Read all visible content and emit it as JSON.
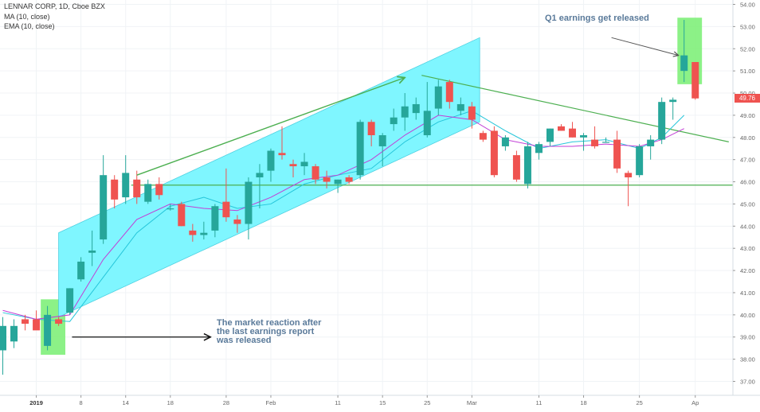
{
  "header": {
    "title": "LENNAR CORP, 1D, Cboe BZX",
    "indicators": [
      "MA (10, close)",
      "EMA (10, close)"
    ]
  },
  "last_price_label": "49.76",
  "colors": {
    "up": "#26a69a",
    "down": "#ef5350",
    "channel_fill": "#7ff6ff",
    "channel_edge": "#4dd0e1",
    "trend_line": "#4caf50",
    "highlight_box": "#7ff07a",
    "ma": "#26c6da",
    "ema": "#c23ed6",
    "annotation_text": "#5a7a9a",
    "axis_text": "#666666"
  },
  "annotations": [
    {
      "text_lines": [
        "The market reaction after",
        "the last earnings report",
        "was released"
      ]
    },
    {
      "text_lines": [
        "Q1 earnings get released"
      ]
    }
  ],
  "chart_data": {
    "type": "candlestick",
    "title": "LENNAR CORP, 1D, Cboe BZX",
    "xlabel": "",
    "ylabel": "",
    "ylim": [
      36.5,
      54
    ],
    "y_ticks": [
      "37.00",
      "38.00",
      "39.00",
      "40.00",
      "41.00",
      "42.00",
      "43.00",
      "44.00",
      "45.00",
      "46.00",
      "47.00",
      "48.00",
      "49.00",
      "50.00",
      "51.00",
      "52.00",
      "53.00",
      "54.00"
    ],
    "x_ticks": [
      {
        "label": "2019",
        "bar": 3,
        "bold": true
      },
      {
        "label": "8",
        "bar": 7
      },
      {
        "label": "14",
        "bar": 11
      },
      {
        "label": "18",
        "bar": 15
      },
      {
        "label": "28",
        "bar": 20
      },
      {
        "label": "Feb",
        "bar": 24
      },
      {
        "label": "11",
        "bar": 30
      },
      {
        "label": "15",
        "bar": 34
      },
      {
        "label": "25",
        "bar": 38
      },
      {
        "label": "Mar",
        "bar": 42
      },
      {
        "label": "11",
        "bar": 48
      },
      {
        "label": "18",
        "bar": 52
      },
      {
        "label": "25",
        "bar": 57
      },
      {
        "label": "Ap",
        "bar": 62
      }
    ],
    "candles": [
      {
        "o": 38.4,
        "h": 39.9,
        "l": 37.3,
        "c": 39.5
      },
      {
        "o": 38.8,
        "h": 39.8,
        "l": 38.5,
        "c": 39.5
      },
      {
        "o": 39.8,
        "h": 40.0,
        "l": 39.3,
        "c": 39.6
      },
      {
        "o": 39.8,
        "h": 40.2,
        "l": 39.4,
        "c": 39.3
      },
      {
        "o": 38.6,
        "h": 40.4,
        "l": 38.4,
        "c": 40.0
      },
      {
        "o": 39.8,
        "h": 39.9,
        "l": 39.5,
        "c": 39.6
      },
      {
        "o": 40.1,
        "h": 41.2,
        "l": 40.0,
        "c": 41.2
      },
      {
        "o": 41.6,
        "h": 42.6,
        "l": 41.5,
        "c": 42.4
      },
      {
        "o": 42.8,
        "h": 43.8,
        "l": 42.2,
        "c": 42.9
      },
      {
        "o": 43.4,
        "h": 47.2,
        "l": 43.2,
        "c": 46.3
      },
      {
        "o": 46.1,
        "h": 46.3,
        "l": 44.8,
        "c": 45.2
      },
      {
        "o": 45.3,
        "h": 47.2,
        "l": 45.0,
        "c": 46.4
      },
      {
        "o": 46.1,
        "h": 46.5,
        "l": 45.0,
        "c": 45.3
      },
      {
        "o": 45.1,
        "h": 46.1,
        "l": 45.0,
        "c": 45.9
      },
      {
        "o": 45.9,
        "h": 46.2,
        "l": 45.2,
        "c": 45.4
      },
      {
        "o": 44.8,
        "h": 45.0,
        "l": 44.7,
        "c": 44.8
      },
      {
        "o": 45.0,
        "h": 45.1,
        "l": 44.0,
        "c": 44.0
      },
      {
        "o": 43.8,
        "h": 44.1,
        "l": 43.3,
        "c": 43.6
      },
      {
        "o": 43.6,
        "h": 44.2,
        "l": 43.4,
        "c": 43.7
      },
      {
        "o": 43.8,
        "h": 45.0,
        "l": 43.5,
        "c": 44.9
      },
      {
        "o": 45.1,
        "h": 46.6,
        "l": 44.2,
        "c": 44.4
      },
      {
        "o": 44.3,
        "h": 44.5,
        "l": 43.7,
        "c": 44.1
      },
      {
        "o": 44.1,
        "h": 46.2,
        "l": 43.4,
        "c": 46.0
      },
      {
        "o": 46.2,
        "h": 46.8,
        "l": 44.8,
        "c": 46.4
      },
      {
        "o": 46.5,
        "h": 47.5,
        "l": 46.0,
        "c": 47.4
      },
      {
        "o": 47.3,
        "h": 48.5,
        "l": 47.0,
        "c": 47.2
      },
      {
        "o": 46.8,
        "h": 47.0,
        "l": 46.2,
        "c": 46.7
      },
      {
        "o": 46.7,
        "h": 47.3,
        "l": 46.3,
        "c": 46.9
      },
      {
        "o": 46.7,
        "h": 46.8,
        "l": 45.9,
        "c": 46.1
      },
      {
        "o": 46.2,
        "h": 46.5,
        "l": 45.7,
        "c": 46.0
      },
      {
        "o": 45.9,
        "h": 46.1,
        "l": 45.5,
        "c": 46.1
      },
      {
        "o": 46.2,
        "h": 46.3,
        "l": 45.9,
        "c": 46.0
      },
      {
        "o": 46.3,
        "h": 48.8,
        "l": 46.1,
        "c": 48.7
      },
      {
        "o": 48.7,
        "h": 48.8,
        "l": 47.6,
        "c": 48.1
      },
      {
        "o": 47.6,
        "h": 48.2,
        "l": 46.7,
        "c": 48.1
      },
      {
        "o": 48.6,
        "h": 49.3,
        "l": 48.3,
        "c": 48.9
      },
      {
        "o": 48.9,
        "h": 50.0,
        "l": 48.3,
        "c": 49.4
      },
      {
        "o": 49.1,
        "h": 49.8,
        "l": 48.8,
        "c": 49.5
      },
      {
        "o": 48.1,
        "h": 50.5,
        "l": 48.0,
        "c": 49.2
      },
      {
        "o": 49.3,
        "h": 50.6,
        "l": 49.0,
        "c": 50.3
      },
      {
        "o": 50.5,
        "h": 50.6,
        "l": 49.3,
        "c": 49.6
      },
      {
        "o": 49.2,
        "h": 49.8,
        "l": 49.0,
        "c": 49.5
      },
      {
        "o": 49.4,
        "h": 49.6,
        "l": 48.4,
        "c": 48.8
      },
      {
        "o": 48.2,
        "h": 48.3,
        "l": 47.8,
        "c": 47.9
      },
      {
        "o": 48.3,
        "h": 48.5,
        "l": 46.2,
        "c": 46.3
      },
      {
        "o": 47.6,
        "h": 48.1,
        "l": 47.4,
        "c": 48.0
      },
      {
        "o": 47.2,
        "h": 47.4,
        "l": 46.0,
        "c": 46.1
      },
      {
        "o": 45.9,
        "h": 47.8,
        "l": 45.7,
        "c": 47.6
      },
      {
        "o": 47.3,
        "h": 47.8,
        "l": 47.0,
        "c": 47.7
      },
      {
        "o": 47.8,
        "h": 48.4,
        "l": 47.6,
        "c": 48.4
      },
      {
        "o": 48.5,
        "h": 48.6,
        "l": 48.3,
        "c": 48.3
      },
      {
        "o": 48.4,
        "h": 48.7,
        "l": 48.0,
        "c": 48.0
      },
      {
        "o": 48.0,
        "h": 48.2,
        "l": 47.4,
        "c": 48.1
      },
      {
        "o": 47.9,
        "h": 48.5,
        "l": 47.5,
        "c": 47.6
      },
      {
        "o": 47.8,
        "h": 48.0,
        "l": 47.8,
        "c": 47.8
      },
      {
        "o": 47.9,
        "h": 48.3,
        "l": 46.4,
        "c": 46.6
      },
      {
        "o": 46.4,
        "h": 46.5,
        "l": 44.9,
        "c": 46.2
      },
      {
        "o": 46.3,
        "h": 47.7,
        "l": 46.2,
        "c": 47.6
      },
      {
        "o": 47.6,
        "h": 48.1,
        "l": 47.0,
        "c": 47.9
      },
      {
        "o": 47.9,
        "h": 49.8,
        "l": 47.7,
        "c": 49.6
      },
      {
        "o": 49.6,
        "h": 49.8,
        "l": 48.8,
        "c": 49.7
      },
      {
        "o": 51.0,
        "h": 53.3,
        "l": 50.5,
        "c": 51.7
      },
      {
        "o": 51.4,
        "h": 51.4,
        "l": 49.7,
        "c": 49.76
      }
    ],
    "ma_10": [
      {
        "bar": 0,
        "v": 40.1
      },
      {
        "bar": 3,
        "v": 39.8
      },
      {
        "bar": 6,
        "v": 39.7
      },
      {
        "bar": 9,
        "v": 41.7
      },
      {
        "bar": 12,
        "v": 43.7
      },
      {
        "bar": 15,
        "v": 44.9
      },
      {
        "bar": 18,
        "v": 45.3
      },
      {
        "bar": 21,
        "v": 44.8
      },
      {
        "bar": 24,
        "v": 45.0
      },
      {
        "bar": 27,
        "v": 45.9
      },
      {
        "bar": 30,
        "v": 46.3
      },
      {
        "bar": 33,
        "v": 46.6
      },
      {
        "bar": 36,
        "v": 47.8
      },
      {
        "bar": 39,
        "v": 48.7
      },
      {
        "bar": 42,
        "v": 49.2
      },
      {
        "bar": 45,
        "v": 48.3
      },
      {
        "bar": 48,
        "v": 47.5
      },
      {
        "bar": 51,
        "v": 47.8
      },
      {
        "bar": 54,
        "v": 47.9
      },
      {
        "bar": 57,
        "v": 47.5
      },
      {
        "bar": 59,
        "v": 48.0
      },
      {
        "bar": 61,
        "v": 49.0
      }
    ],
    "ema_10": [
      {
        "bar": 0,
        "v": 40.2
      },
      {
        "bar": 3,
        "v": 39.8
      },
      {
        "bar": 6,
        "v": 40.0
      },
      {
        "bar": 9,
        "v": 42.5
      },
      {
        "bar": 12,
        "v": 44.3
      },
      {
        "bar": 15,
        "v": 45.0
      },
      {
        "bar": 18,
        "v": 44.8
      },
      {
        "bar": 21,
        "v": 44.7
      },
      {
        "bar": 24,
        "v": 45.3
      },
      {
        "bar": 27,
        "v": 46.1
      },
      {
        "bar": 30,
        "v": 46.3
      },
      {
        "bar": 33,
        "v": 47.0
      },
      {
        "bar": 36,
        "v": 48.1
      },
      {
        "bar": 39,
        "v": 49.0
      },
      {
        "bar": 42,
        "v": 48.8
      },
      {
        "bar": 45,
        "v": 47.9
      },
      {
        "bar": 48,
        "v": 47.6
      },
      {
        "bar": 51,
        "v": 47.6
      },
      {
        "bar": 54,
        "v": 47.7
      },
      {
        "bar": 57,
        "v": 47.6
      },
      {
        "bar": 59,
        "v": 47.9
      },
      {
        "bar": 61,
        "v": 48.4
      }
    ],
    "channel": {
      "lower_start": {
        "bar": 5,
        "v": 39.9
      },
      "lower_end": {
        "bar": 42.7,
        "v": 48.7
      },
      "upper_start": {
        "bar": 5,
        "v": 43.7
      },
      "upper_end": {
        "bar": 42.7,
        "v": 52.5
      }
    },
    "horizontal_support": {
      "v": 45.85,
      "from_bar": 11.5
    },
    "descending_trendline": {
      "from": {
        "bar": 37.5,
        "v": 50.8
      },
      "to": {
        "bar": 65,
        "v": 47.8
      }
    },
    "rising_arrow": {
      "from": {
        "bar": 12,
        "v": 46.3
      },
      "to": {
        "bar": 36,
        "v": 50.7
      }
    },
    "horizontal_arrow": {
      "from": {
        "bar": 6.2,
        "v": 39.0
      },
      "to": {
        "bar": 18.6,
        "v": 39.0
      }
    },
    "pointer_arrow": {
      "from": {
        "bar": 54.5,
        "v": 52.5
      },
      "to": {
        "bar": 60.5,
        "v": 51.7
      }
    },
    "highlight_boxes": [
      {
        "bar_from": 3.4,
        "bar_to": 5.6,
        "v_from": 38.2,
        "v_to": 40.7
      },
      {
        "bar_from": 60.4,
        "bar_to": 62.6,
        "v_from": 50.4,
        "v_to": 53.4
      }
    ]
  }
}
